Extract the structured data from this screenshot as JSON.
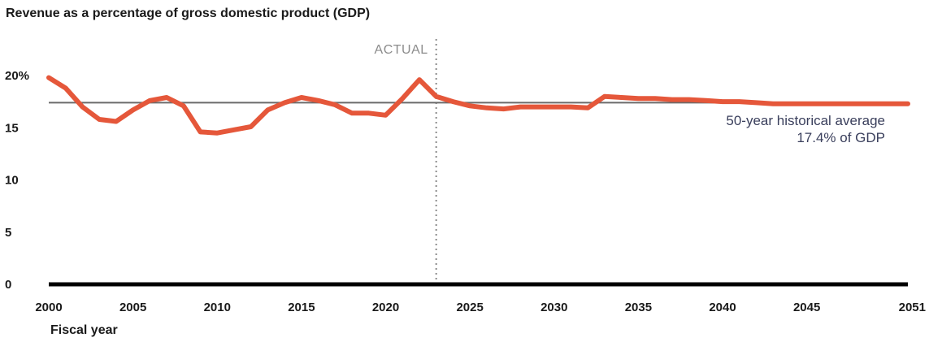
{
  "chart_data": {
    "type": "line",
    "title": "Revenue as a percentage of gross domestic product (GDP)",
    "xlabel": "Fiscal year",
    "ylabel": "",
    "xlim": [
      2000,
      2051
    ],
    "ylim": [
      0,
      20
    ],
    "y_ticks": [
      {
        "value": 0,
        "label": "0"
      },
      {
        "value": 5,
        "label": "5"
      },
      {
        "value": 10,
        "label": "10"
      },
      {
        "value": 15,
        "label": "15"
      },
      {
        "value": 20,
        "label": "20%"
      }
    ],
    "x_ticks": [
      2000,
      2005,
      2010,
      2015,
      2020,
      2025,
      2030,
      2035,
      2040,
      2045,
      2051
    ],
    "grid": false,
    "actual_divider": {
      "x": 2023,
      "label": "ACTUAL"
    },
    "average_line": {
      "value": 17.4,
      "label_line1": "50-year historical average",
      "label_line2": "17.4% of GDP",
      "color": "#6b6b6b"
    },
    "series": [
      {
        "color": "#e5573a",
        "x": [
          2000,
          2001,
          2002,
          2003,
          2004,
          2005,
          2006,
          2007,
          2008,
          2009,
          2010,
          2011,
          2012,
          2013,
          2014,
          2015,
          2016,
          2017,
          2018,
          2019,
          2020,
          2021,
          2022,
          2023,
          2024,
          2025,
          2026,
          2027,
          2028,
          2029,
          2030,
          2031,
          2032,
          2033,
          2034,
          2035,
          2036,
          2037,
          2038,
          2039,
          2040,
          2041,
          2042,
          2043,
          2044,
          2045,
          2046,
          2047,
          2048,
          2049,
          2050,
          2051
        ],
        "values": [
          19.8,
          18.8,
          17.0,
          15.8,
          15.6,
          16.7,
          17.6,
          17.9,
          17.1,
          14.6,
          14.5,
          14.8,
          15.1,
          16.7,
          17.4,
          17.9,
          17.6,
          17.2,
          16.4,
          16.4,
          16.2,
          17.8,
          19.6,
          18.0,
          17.5,
          17.1,
          16.9,
          16.8,
          17.0,
          17.0,
          17.0,
          17.0,
          16.9,
          18.0,
          17.9,
          17.8,
          17.8,
          17.7,
          17.7,
          17.6,
          17.5,
          17.5,
          17.4,
          17.3,
          17.3,
          17.3,
          17.3,
          17.3,
          17.3,
          17.3,
          17.3,
          17.3
        ]
      }
    ]
  }
}
